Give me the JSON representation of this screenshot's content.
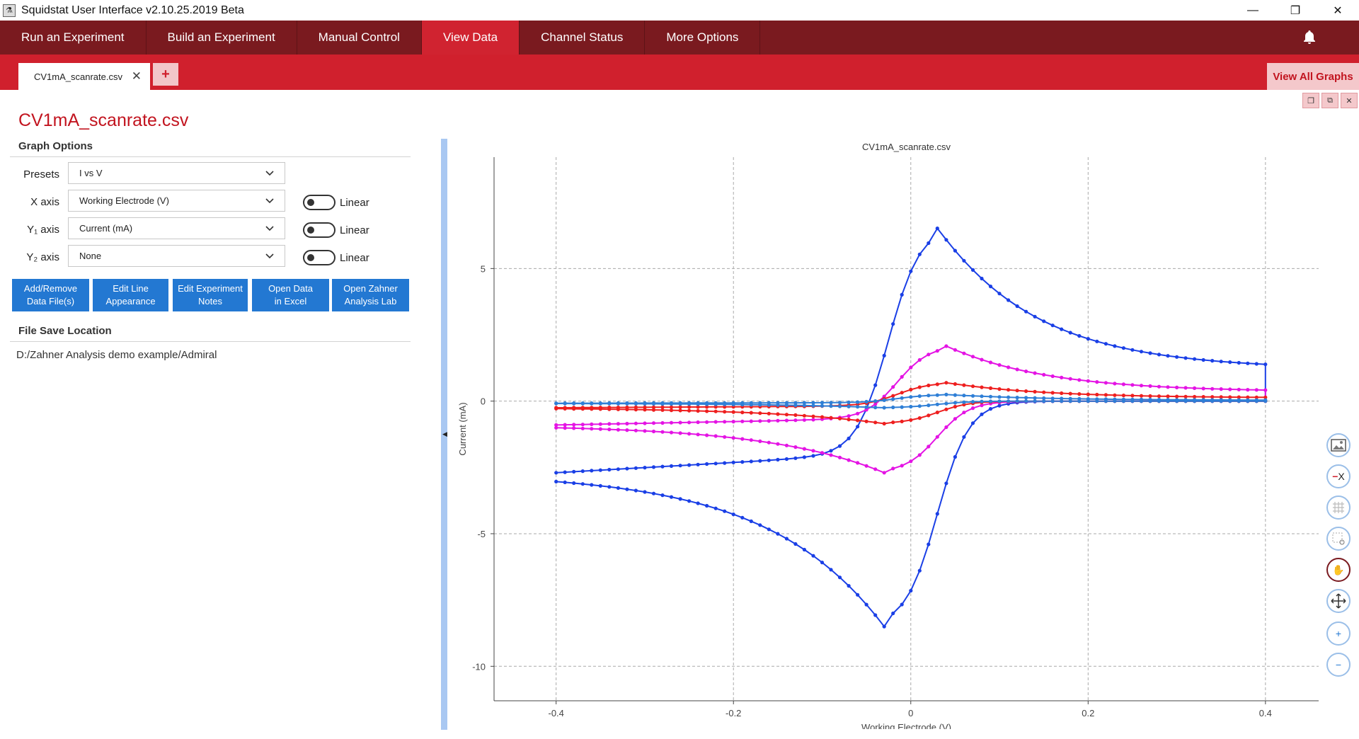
{
  "window": {
    "title": "Squidstat User Interface v2.10.25.2019 Beta",
    "minimize": "—",
    "restore": "❐",
    "close": "✕"
  },
  "menu": {
    "items": [
      {
        "label": "Run an Experiment",
        "active": false
      },
      {
        "label": "Build an Experiment",
        "active": false
      },
      {
        "label": "Manual Control",
        "active": false
      },
      {
        "label": "View Data",
        "active": true
      },
      {
        "label": "Channel Status",
        "active": false
      },
      {
        "label": "More Options",
        "active": false
      }
    ]
  },
  "tabs": {
    "file_tab": "CV1mA_scanrate.csv",
    "close": "✕",
    "add": "+",
    "view_all": "View All Graphs"
  },
  "left": {
    "page_title": "CV1mA_scanrate.csv",
    "graph_options": "Graph Options",
    "presets_label": "Presets",
    "presets_value": "I vs V",
    "x_label": "X axis",
    "x_value": "Working Electrode (V)",
    "y1_label": "Y₁ axis",
    "y1_value": "Current (mA)",
    "y2_label": "Y₂ axis",
    "y2_value": "None",
    "linear": "Linear",
    "buttons": [
      "Add/Remove\nData File(s)",
      "Edit Line\nAppearance",
      "Edit Experiment\nNotes",
      "Open Data\nin Excel",
      "Open Zahner\nAnalysis Lab"
    ],
    "file_save_location": "File Save Location",
    "path": "D:/Zahner Analysis demo example/Admiral"
  },
  "chart_data": {
    "type": "line",
    "title": "CV1mA_scanrate.csv",
    "xlabel": "Working Electrode (V)",
    "ylabel": "Current (mA)",
    "xlim": [
      -0.47,
      0.46
    ],
    "ylim": [
      -11.3,
      9.2
    ],
    "xticks": [
      -0.4,
      -0.2,
      0,
      0.2,
      0.4
    ],
    "yticks": [
      5,
      0,
      -5,
      -10
    ],
    "xtick_labels": [
      "-0.4",
      "-0.2",
      "0",
      "0.2",
      "0.4"
    ],
    "ytick_labels": [
      "5",
      "0",
      "-5",
      "-10"
    ],
    "grid": true,
    "series": [
      {
        "color": "#1a3fe6",
        "ipa": 6.6,
        "ipc": -8.5,
        "epa": 0.03,
        "epc": -0.03,
        "start": -2.7,
        "end": 1.2
      },
      {
        "color": "#e414e4",
        "ipa": 2.1,
        "ipc": -2.7,
        "epa": 0.04,
        "epc": -0.03,
        "start": -0.9,
        "end": 0.35
      },
      {
        "color": "#ee1f1f",
        "ipa": 0.7,
        "ipc": -0.85,
        "epa": 0.04,
        "epc": -0.03,
        "start": -0.25,
        "end": 0.12
      },
      {
        "color": "#2f7fd6",
        "ipa": 0.25,
        "ipc": -0.25,
        "epa": 0.04,
        "epc": -0.03,
        "start": -0.08,
        "end": 0.03
      }
    ]
  },
  "tools": [
    "image-icon",
    "remove-x-icon",
    "grid-icon",
    "zoom-box-icon",
    "hand-pan-icon",
    "move-icon",
    "zoom-in-icon",
    "zoom-out-icon"
  ]
}
